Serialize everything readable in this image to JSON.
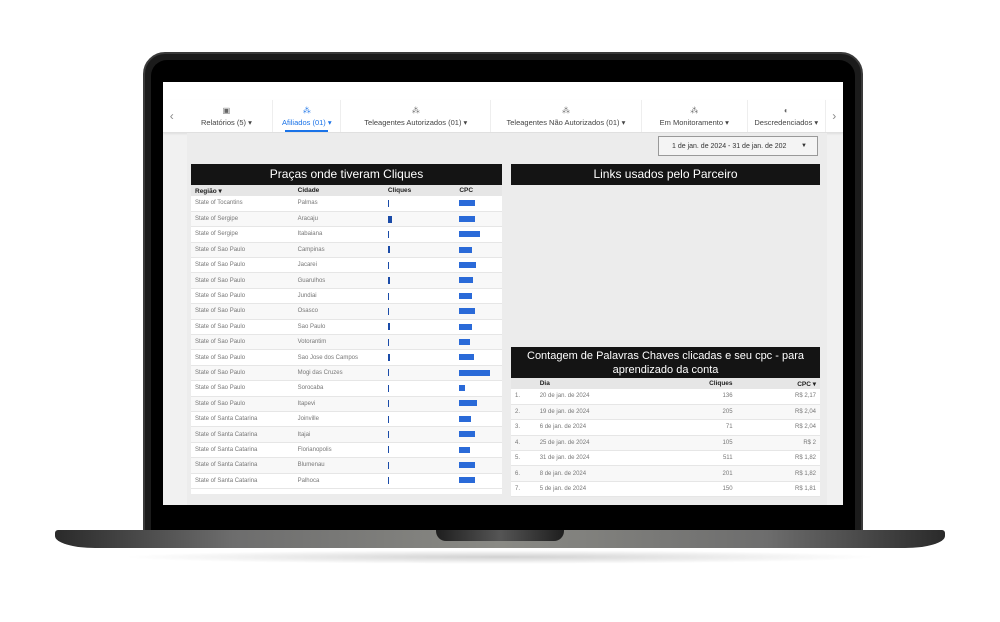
{
  "tabs": [
    {
      "label": "Relatórios (5)",
      "icon": "report-icon"
    },
    {
      "label": "Afiliados (01)",
      "icon": "group-icon",
      "active": true
    },
    {
      "label": "Teleagentes Autorizados (01)",
      "icon": "group-icon"
    },
    {
      "label": "Teleagentes Não Autorizados (01)",
      "icon": "group-icon"
    },
    {
      "label": "Em Monitoramento",
      "icon": "group-icon"
    },
    {
      "label": "Descredenciados",
      "icon": "toggle-icon"
    }
  ],
  "date_range": "1 de jan. de 2024 - 31 de jan. de 202",
  "accent": "#1a73e8",
  "bar_color": "#2a6ad8",
  "pracas": {
    "title": "Praças onde tiveram Cliques",
    "headers": [
      "Região ▾",
      "Cidade",
      "Cliques",
      "CPC"
    ],
    "rows": [
      {
        "regiao": "State of Tocantins",
        "cidade": "Palmas",
        "cliques": 0.03,
        "cpc": 0.52
      },
      {
        "regiao": "State of Sergipe",
        "cidade": "Aracaju",
        "cliques": 0.13,
        "cpc": 0.52
      },
      {
        "regiao": "State of Sergipe",
        "cidade": "Itabaiana",
        "cliques": 0.03,
        "cpc": 0.68
      },
      {
        "regiao": "State of Sao Paulo",
        "cidade": "Campinas",
        "cliques": 0.07,
        "cpc": 0.42
      },
      {
        "regiao": "State of Sao Paulo",
        "cidade": "Jacarei",
        "cliques": 0.03,
        "cpc": 0.55
      },
      {
        "regiao": "State of Sao Paulo",
        "cidade": "Guarulhos",
        "cliques": 0.07,
        "cpc": 0.45
      },
      {
        "regiao": "State of Sao Paulo",
        "cidade": "Jundiai",
        "cliques": 0.03,
        "cpc": 0.42
      },
      {
        "regiao": "State of Sao Paulo",
        "cidade": "Osasco",
        "cliques": 0.03,
        "cpc": 0.52
      },
      {
        "regiao": "State of Sao Paulo",
        "cidade": "Sao Paulo",
        "cliques": 0.07,
        "cpc": 0.42
      },
      {
        "regiao": "State of Sao Paulo",
        "cidade": "Votorantim",
        "cliques": 0.03,
        "cpc": 0.36
      },
      {
        "regiao": "State of Sao Paulo",
        "cidade": "Sao Jose dos Campos",
        "cliques": 0.07,
        "cpc": 0.48
      },
      {
        "regiao": "State of Sao Paulo",
        "cidade": "Mogi das Cruzes",
        "cliques": 0.03,
        "cpc": 1.0
      },
      {
        "regiao": "State of Sao Paulo",
        "cidade": "Sorocaba",
        "cliques": 0.03,
        "cpc": 0.19
      },
      {
        "regiao": "State of Sao Paulo",
        "cidade": "Itapevi",
        "cliques": 0.03,
        "cpc": 0.58
      },
      {
        "regiao": "State of Santa Catarina",
        "cidade": "Joinville",
        "cliques": 0.03,
        "cpc": 0.39
      },
      {
        "regiao": "State of Santa Catarina",
        "cidade": "Itajai",
        "cliques": 0.03,
        "cpc": 0.52
      },
      {
        "regiao": "State of Santa Catarina",
        "cidade": "Florianopolis",
        "cliques": 0.03,
        "cpc": 0.35
      },
      {
        "regiao": "State of Santa Catarina",
        "cidade": "Blumenau",
        "cliques": 0.03,
        "cpc": 0.52
      },
      {
        "regiao": "State of Santa Catarina",
        "cidade": "Palhoca",
        "cliques": 0.03,
        "cpc": 0.52
      }
    ]
  },
  "links": {
    "title": "Links usados pelo Parceiro"
  },
  "palavras": {
    "title": "Contagem de Palavras Chaves clicadas e seu cpc - para aprendizado da conta",
    "headers": [
      "",
      "Dia",
      "Cliques",
      "CPC ▾"
    ],
    "rows": [
      {
        "n": "1.",
        "dia": "20 de jan. de 2024",
        "cliques": "136",
        "cpc": "R$ 2,17"
      },
      {
        "n": "2.",
        "dia": "19 de jan. de 2024",
        "cliques": "205",
        "cpc": "R$ 2,04"
      },
      {
        "n": "3.",
        "dia": "6 de jan. de 2024",
        "cliques": "71",
        "cpc": "R$ 2,04"
      },
      {
        "n": "4.",
        "dia": "25 de jan. de 2024",
        "cliques": "105",
        "cpc": "R$ 2"
      },
      {
        "n": "5.",
        "dia": "31 de jan. de 2024",
        "cliques": "511",
        "cpc": "R$ 1,82"
      },
      {
        "n": "6.",
        "dia": "8 de jan. de 2024",
        "cliques": "201",
        "cpc": "R$ 1,82"
      },
      {
        "n": "7.",
        "dia": "5 de jan. de 2024",
        "cliques": "150",
        "cpc": "R$ 1,81"
      }
    ]
  }
}
